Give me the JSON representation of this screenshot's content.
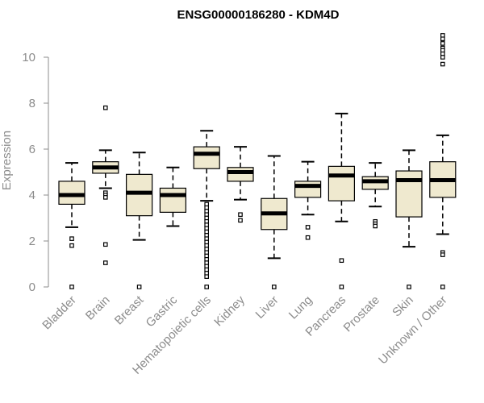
{
  "chart_data": {
    "type": "boxplot",
    "title": "ENSG00000186280 - KDM4D",
    "ylabel": "Expression",
    "xlabel": "",
    "ylim": [
      0,
      10
    ],
    "yticks": [
      0,
      2,
      4,
      6,
      8,
      10
    ],
    "grid": false,
    "box_color": "#efe9cf",
    "categories": [
      "Bladder",
      "Brain",
      "Breast",
      "Gastric",
      "Hematopoietic cells",
      "Kidney",
      "Liver",
      "Lung",
      "Pancreas",
      "Prostate",
      "Skin",
      "Unknown / Other"
    ],
    "boxes": [
      {
        "min": 2.6,
        "q1": 3.6,
        "median": 4.0,
        "q3": 4.6,
        "max": 5.4,
        "outliers": [
          2.1,
          1.8,
          0.0
        ]
      },
      {
        "min": 4.3,
        "q1": 4.95,
        "median": 5.2,
        "q3": 5.45,
        "max": 5.95,
        "outliers": [
          7.8,
          4.1,
          4.0,
          3.9,
          1.85,
          1.05
        ]
      },
      {
        "min": 2.05,
        "q1": 3.1,
        "median": 4.1,
        "q3": 4.9,
        "max": 5.85,
        "outliers": [
          0.0
        ]
      },
      {
        "min": 2.65,
        "q1": 3.25,
        "median": 4.0,
        "q3": 4.3,
        "max": 5.2,
        "outliers": []
      },
      {
        "min": 3.75,
        "q1": 5.15,
        "median": 5.8,
        "q3": 6.1,
        "max": 6.8,
        "outliers": [
          3.6,
          3.45,
          3.3,
          3.15,
          3.0,
          2.85,
          2.7,
          2.55,
          2.4,
          2.25,
          2.1,
          1.95,
          1.8,
          1.65,
          1.5,
          1.35,
          1.2,
          1.05,
          0.9,
          0.75,
          0.6,
          0.45,
          0.0
        ]
      },
      {
        "min": 3.8,
        "q1": 4.6,
        "median": 5.0,
        "q3": 5.2,
        "max": 6.1,
        "outliers": [
          3.15,
          2.9
        ]
      },
      {
        "min": 1.25,
        "q1": 2.5,
        "median": 3.2,
        "q3": 3.85,
        "max": 5.7,
        "outliers": [
          0.0
        ]
      },
      {
        "min": 3.15,
        "q1": 3.9,
        "median": 4.4,
        "q3": 4.6,
        "max": 5.45,
        "outliers": [
          2.6,
          2.15
        ]
      },
      {
        "min": 2.85,
        "q1": 3.75,
        "median": 4.85,
        "q3": 5.25,
        "max": 7.55,
        "outliers": [
          1.15,
          0.0
        ]
      },
      {
        "min": 3.5,
        "q1": 4.25,
        "median": 4.6,
        "q3": 4.8,
        "max": 5.4,
        "outliers": [
          2.85,
          2.75,
          2.65
        ]
      },
      {
        "min": 1.75,
        "q1": 3.05,
        "median": 4.65,
        "q3": 5.05,
        "max": 5.95,
        "outliers": [
          0.0
        ]
      },
      {
        "min": 2.3,
        "q1": 3.9,
        "median": 4.65,
        "q3": 5.45,
        "max": 6.6,
        "outliers": [
          10.95,
          10.8,
          10.6,
          10.4,
          10.3,
          10.15,
          10.0,
          9.7,
          1.5,
          1.4,
          0.0
        ]
      }
    ]
  }
}
